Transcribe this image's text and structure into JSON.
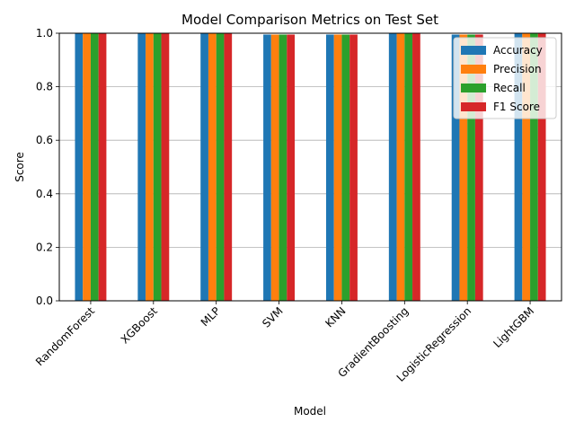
{
  "chart_data": {
    "type": "bar",
    "title": "Model Comparison Metrics on Test Set",
    "xlabel": "Model",
    "ylabel": "Score",
    "ylim": [
      0,
      1.0
    ],
    "yticks": [
      "0.0",
      "0.2",
      "0.4",
      "0.6",
      "0.8",
      "1.0"
    ],
    "grid": "y",
    "legend_position": "top-right",
    "categories": [
      "RandomForest",
      "XGBoost",
      "MLP",
      "SVM",
      "KNN",
      "GradientBoosting",
      "LogisticRegression",
      "LightGBM"
    ],
    "series": [
      {
        "name": "Accuracy",
        "color": "#1f77b4",
        "values": [
          1.0,
          1.0,
          1.0,
          0.995,
          0.995,
          1.0,
          0.995,
          1.0
        ]
      },
      {
        "name": "Precision",
        "color": "#ff7f0e",
        "values": [
          1.0,
          1.0,
          1.0,
          0.995,
          0.995,
          1.0,
          0.995,
          1.0
        ]
      },
      {
        "name": "Recall",
        "color": "#2ca02c",
        "values": [
          1.0,
          1.0,
          1.0,
          0.995,
          0.995,
          1.0,
          0.995,
          1.0
        ]
      },
      {
        "name": "F1 Score",
        "color": "#d62728",
        "values": [
          1.0,
          1.0,
          1.0,
          0.995,
          0.995,
          1.0,
          0.995,
          1.0
        ]
      }
    ]
  }
}
